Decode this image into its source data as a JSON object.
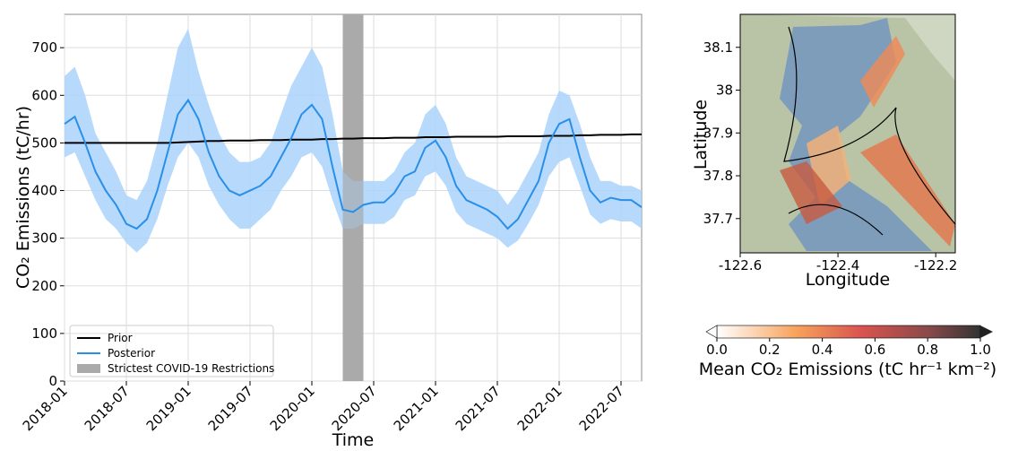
{
  "chart_data": [
    {
      "type": "line",
      "xlabel": "Time",
      "ylabel": "CO₂ Emissions (tC/hr)",
      "x": [
        "2018-01",
        "2018-02",
        "2018-03",
        "2018-04",
        "2018-05",
        "2018-06",
        "2018-07",
        "2018-08",
        "2018-09",
        "2018-10",
        "2018-11",
        "2018-12",
        "2019-01",
        "2019-02",
        "2019-03",
        "2019-04",
        "2019-05",
        "2019-06",
        "2019-07",
        "2019-08",
        "2019-09",
        "2019-10",
        "2019-11",
        "2019-12",
        "2020-01",
        "2020-02",
        "2020-03",
        "2020-04",
        "2020-05",
        "2020-06",
        "2020-07",
        "2020-08",
        "2020-09",
        "2020-10",
        "2020-11",
        "2020-12",
        "2021-01",
        "2021-02",
        "2021-03",
        "2021-04",
        "2021-05",
        "2021-06",
        "2021-07",
        "2021-08",
        "2021-09",
        "2021-10",
        "2021-11",
        "2021-12",
        "2022-01",
        "2022-02",
        "2022-03",
        "2022-04",
        "2022-05",
        "2022-06",
        "2022-07",
        "2022-08",
        "2022-09"
      ],
      "series": [
        {
          "name": "Prior",
          "color": "#000000",
          "values": [
            500,
            500,
            500,
            500,
            500,
            500,
            500,
            500,
            500,
            500,
            500,
            501,
            502,
            503,
            504,
            504,
            505,
            505,
            505,
            506,
            506,
            506,
            507,
            507,
            507,
            508,
            508,
            509,
            509,
            510,
            510,
            510,
            511,
            511,
            511,
            512,
            512,
            512,
            513,
            513,
            513,
            513,
            513,
            514,
            514,
            514,
            514,
            515,
            515,
            515,
            516,
            516,
            517,
            517,
            517,
            518,
            518
          ]
        },
        {
          "name": "Posterior",
          "color": "#2a8fe8",
          "band_color": "#aad4fb",
          "values": [
            540,
            555,
            500,
            440,
            400,
            370,
            330,
            320,
            340,
            400,
            480,
            560,
            590,
            550,
            480,
            430,
            400,
            390,
            400,
            410,
            430,
            470,
            510,
            560,
            580,
            550,
            450,
            360,
            355,
            370,
            375,
            375,
            395,
            430,
            440,
            490,
            505,
            470,
            410,
            380,
            370,
            360,
            345,
            320,
            340,
            380,
            420,
            500,
            540,
            550,
            470,
            400,
            375,
            385,
            380,
            380,
            365
          ],
          "upper": [
            640,
            660,
            600,
            520,
            480,
            440,
            390,
            380,
            420,
            500,
            600,
            700,
            740,
            650,
            580,
            520,
            480,
            460,
            460,
            470,
            500,
            560,
            620,
            660,
            700,
            660,
            560,
            440,
            420,
            420,
            420,
            420,
            440,
            480,
            500,
            560,
            580,
            540,
            470,
            430,
            420,
            410,
            400,
            370,
            400,
            440,
            480,
            560,
            610,
            600,
            540,
            470,
            420,
            420,
            410,
            410,
            400
          ],
          "lower": [
            470,
            480,
            430,
            380,
            340,
            320,
            290,
            270,
            290,
            340,
            410,
            470,
            500,
            470,
            410,
            370,
            340,
            320,
            320,
            340,
            360,
            400,
            430,
            470,
            480,
            450,
            380,
            320,
            320,
            330,
            330,
            330,
            345,
            380,
            390,
            430,
            440,
            410,
            355,
            330,
            320,
            310,
            300,
            280,
            295,
            330,
            370,
            430,
            460,
            470,
            410,
            350,
            330,
            340,
            335,
            335,
            320
          ]
        }
      ],
      "spans": [
        {
          "name": "Strictest COVID-19 Restrictions",
          "color": "#aaaaaa",
          "x": [
            "2020-04",
            "2020-06"
          ]
        }
      ],
      "xlim": [
        "2018-01",
        "2022-09"
      ],
      "xticks": [
        "2018-01",
        "2018-07",
        "2019-01",
        "2019-07",
        "2020-01",
        "2020-07",
        "2021-01",
        "2021-07",
        "2022-01",
        "2022-07"
      ],
      "ylim": [
        0,
        770
      ],
      "yticks": [
        0,
        100,
        200,
        300,
        400,
        500,
        600,
        700
      ],
      "grid": true,
      "legend": "lower left"
    },
    {
      "type": "map",
      "xlabel": "Longitude",
      "ylabel": "Latitude",
      "xlim": [
        -122.6,
        -122.16
      ],
      "xticks": [
        -122.6,
        -122.4,
        -122.2
      ],
      "ylim": [
        37.62,
        38.177
      ],
      "yticks": [
        37.7,
        37.8,
        37.9,
        38.0,
        38.1
      ],
      "colorbar": {
        "label": "Mean CO₂ Emissions (tC hr⁻¹ km⁻²)",
        "lim": [
          0,
          1
        ],
        "ticks": [
          0.0,
          0.2,
          0.4,
          0.6,
          0.8,
          1.0
        ]
      }
    }
  ]
}
